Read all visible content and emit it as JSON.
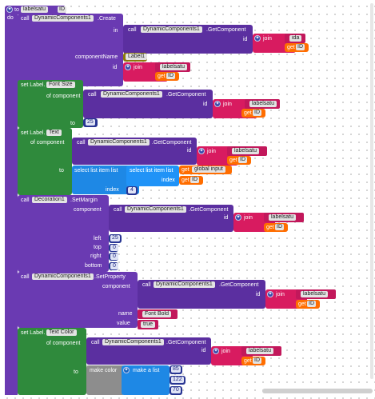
{
  "proc": {
    "to": "to",
    "name": "labelsatu",
    "param": "ID"
  },
  "do": "do",
  "call": "call",
  "comp": "DynamicComponents1",
  "create": ".Create",
  "getcomp": ".GetComponent",
  "in": "in",
  "id": "id",
  "join": "join",
  "ida": "ida",
  "get": "get",
  "ID": "ID",
  "labelsatu": "labelsatu",
  "componentName": "componentName",
  "label1": "Label1",
  "setLabel": "set Label.",
  "fontSize": "Font Size",
  "ofComponent": "of component",
  "toWord": "to",
  "fontVal": "25",
  "text": "Text",
  "selectListItem": "select list item  list",
  "globalInput": "global input",
  "index": "index",
  "indexVal": "4",
  "decoration": "Decoration1",
  "setMargin": ".SetMargin",
  "component": "component",
  "left": "left",
  "top": "top",
  "right": "right",
  "bottom": "bottom",
  "leftVal": "25",
  "zero": "0",
  "setProperty": ".SetProperty",
  "nameWord": "name",
  "valueWord": "value",
  "fontBold": "Font Bold",
  "trueVal": "true",
  "textColor": "Text Color",
  "makeColor": "make color",
  "makeList": "make a list",
  "c1": "85",
  "c2": "122",
  "c3": "70",
  "colors": {
    "purple": "#6a3ab2",
    "green": "#2f8a3c",
    "pink": "#d81b60",
    "orange": "#ff6d00",
    "blue": "#1e88e5",
    "gray": "#8d8d8d"
  }
}
